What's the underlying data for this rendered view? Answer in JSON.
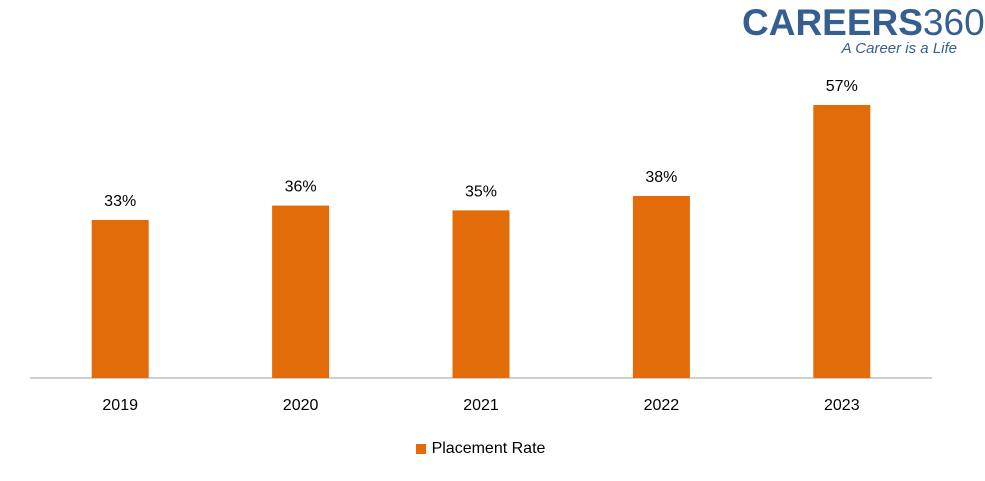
{
  "logo": {
    "brand_bold": "CAREERS",
    "brand_light": "360",
    "tagline": "A Career is a Life"
  },
  "colors": {
    "bar": "#e36c0a",
    "logo": "#365f91",
    "axis": "#bfbfbf"
  },
  "chart_data": {
    "type": "bar",
    "categories": [
      "2019",
      "2020",
      "2021",
      "2022",
      "2023"
    ],
    "series": [
      {
        "name": "Placement Rate",
        "values": [
          33,
          36,
          35,
          38,
          57
        ],
        "labels": [
          "33%",
          "36%",
          "35%",
          "38%",
          "57%"
        ]
      }
    ],
    "ylim": [
      0,
      60
    ],
    "grid": false,
    "legend_position": "bottom"
  }
}
